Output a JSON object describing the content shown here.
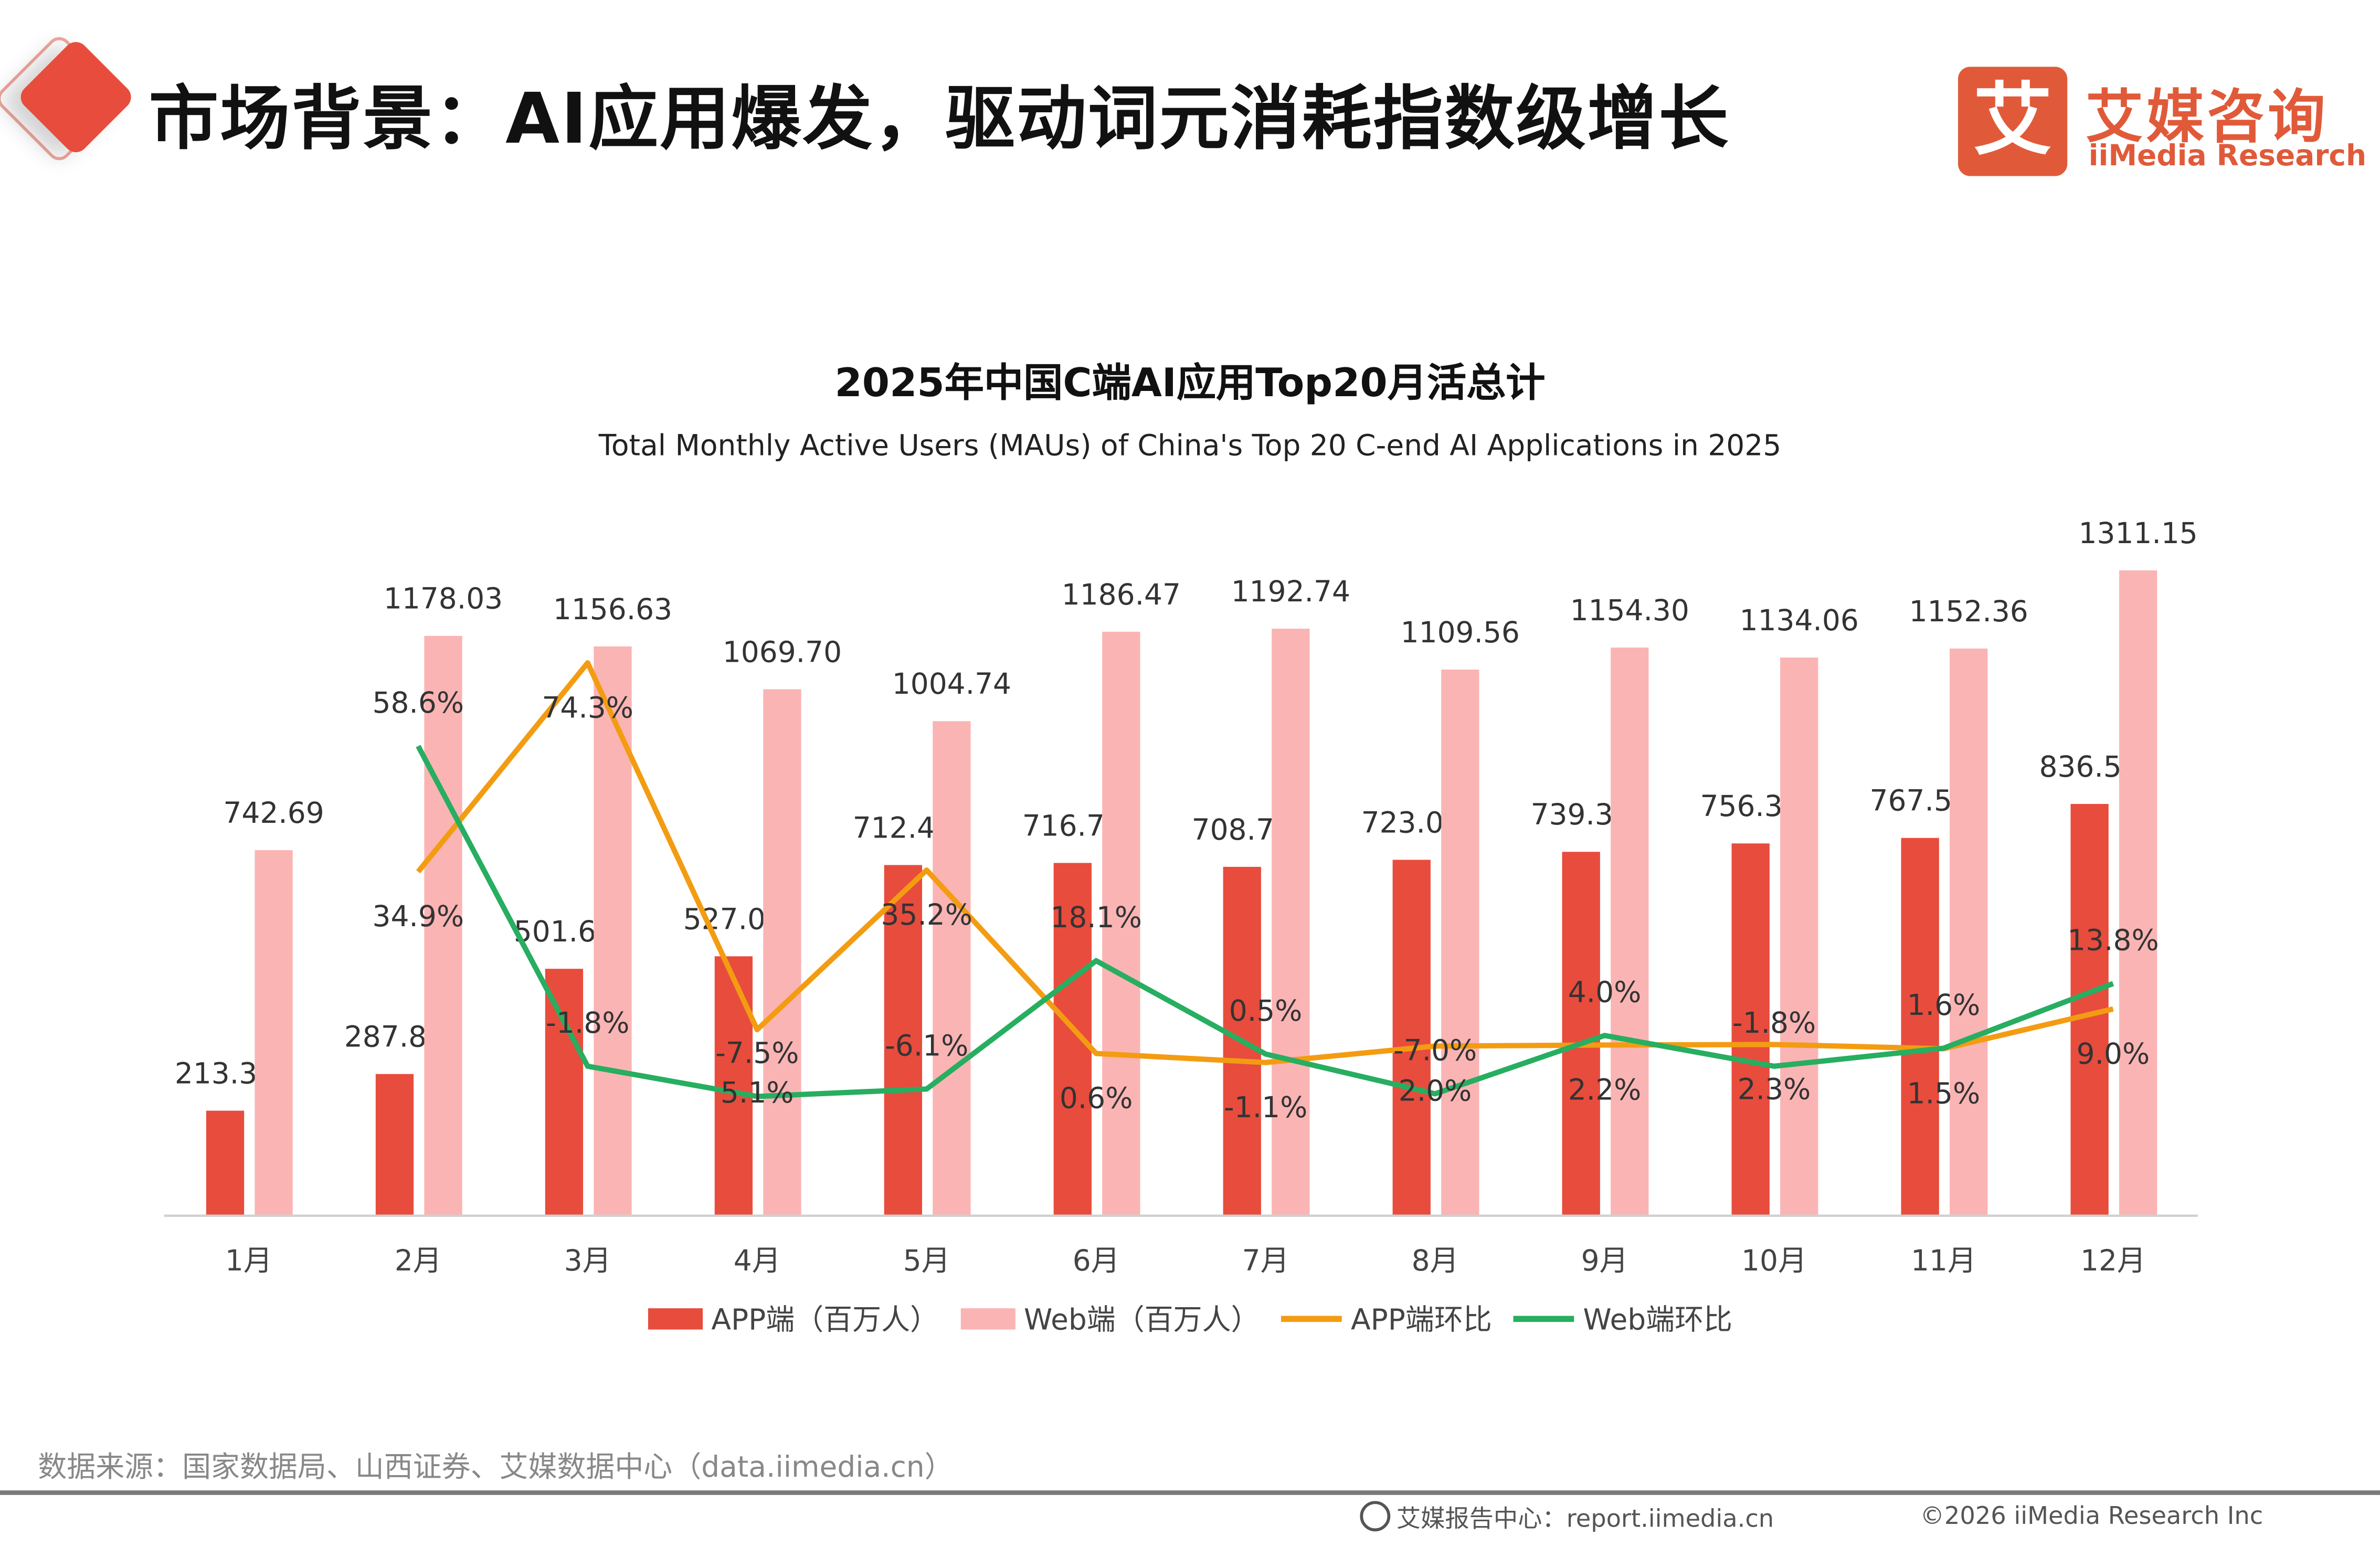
{
  "header": {
    "title": "市场背景：AI应用爆发，驱动词元消耗指数级增长",
    "logo_mark": "艾",
    "logo_cn": "艾媒咨询",
    "logo_en": "iiMedia Research"
  },
  "chart_data": {
    "type": "bar+line",
    "title": "2025年中国C端AI应用Top20月活总计",
    "subtitle": "Total Monthly Active Users (MAUs) of China's Top 20 C-end AI Applications in 2025",
    "categories": [
      "1月",
      "2月",
      "3月",
      "4月",
      "5月",
      "6月",
      "7月",
      "8月",
      "9月",
      "10月",
      "11月",
      "12月"
    ],
    "bar_ylim": [
      0,
      1400
    ],
    "line_ylim": [
      -30,
      100
    ],
    "grid": false,
    "legend_position": "bottom",
    "series": [
      {
        "name": "APP端（百万人）",
        "type": "bar",
        "color": "#e84c3d",
        "values": [
          213.36,
          287.85,
          501.62,
          527.05,
          712.48,
          716.74,
          708.79,
          723.07,
          739.31,
          756.34,
          767.51,
          836.59
        ],
        "labels": [
          "213.36",
          "287.85",
          "501.62",
          "527.05",
          "712.48",
          "716.74",
          "708.79",
          "723.07",
          "739.31",
          "756.34",
          "767.51",
          "836.59"
        ]
      },
      {
        "name": "Web端（百万人）",
        "type": "bar",
        "color": "#fbb4b4",
        "values": [
          742.69,
          1178.03,
          1156.63,
          1069.7,
          1004.74,
          1186.47,
          1192.74,
          1109.56,
          1154.3,
          1134.06,
          1152.36,
          1311.15
        ],
        "labels": [
          "742.69",
          "1178.03",
          "1156.63",
          "1069.70",
          "1004.74",
          "1186.47",
          "1192.74",
          "1109.56",
          "1154.30",
          "1134.06",
          "1152.36",
          "1311.15"
        ]
      },
      {
        "name": "APP端环比",
        "type": "line",
        "color": "#f39c12",
        "values": [
          null,
          34.9,
          74.3,
          5.1,
          35.2,
          0.6,
          -1.1,
          2.0,
          2.2,
          2.3,
          1.5,
          9.0
        ],
        "labels": [
          "",
          "34.9%",
          "74.3%",
          "5.1%",
          "35.2%",
          "0.6%",
          "-1.1%",
          "2.0%",
          "2.2%",
          "2.3%",
          "1.5%",
          "9.0%"
        ]
      },
      {
        "name": "Web端环比",
        "type": "line",
        "color": "#27ae60",
        "values": [
          null,
          58.6,
          -1.8,
          -7.5,
          -6.1,
          18.1,
          0.5,
          -7.0,
          4.0,
          -1.8,
          1.6,
          13.8
        ],
        "labels": [
          "",
          "58.6%",
          "-1.8%",
          "-7.5%",
          "-6.1%",
          "18.1%",
          "0.5%",
          "-7.0%",
          "4.0%",
          "-1.8%",
          "1.6%",
          "13.8%"
        ]
      }
    ]
  },
  "footer": {
    "source": "数据来源：国家数据局、山西证券、艾媒数据中心（data.iimedia.cn）",
    "site": "艾媒报告中心：report.iimedia.cn",
    "copyright": "©2026  iiMedia Research  Inc"
  }
}
